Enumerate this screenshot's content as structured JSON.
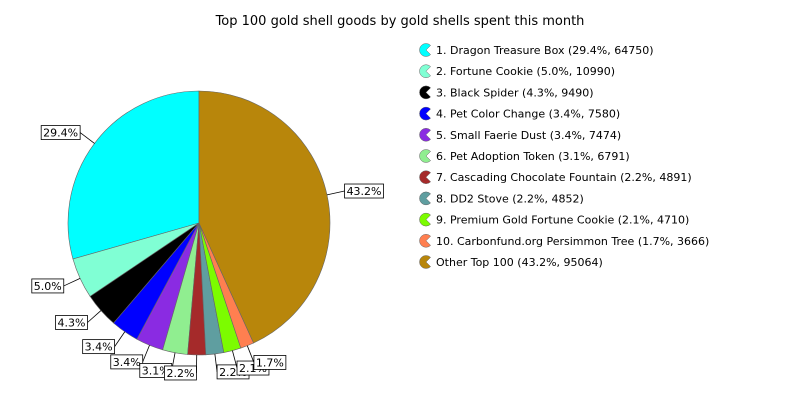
{
  "chart_data": {
    "type": "pie",
    "title": "Top 100 gold shell goods by gold shells spent this month",
    "slices": [
      {
        "legend": "1. Dragon Treasure Box (29.4%, 64750)",
        "name": "Dragon Treasure Box",
        "value": 64750,
        "percent_label": "29.4%",
        "color": "#00ffff"
      },
      {
        "legend": "2. Fortune Cookie (5.0%, 10990)",
        "name": "Fortune Cookie",
        "value": 10990,
        "percent_label": "5.0%",
        "color": "#80ffd4"
      },
      {
        "legend": "3. Black Spider (4.3%, 9490)",
        "name": "Black Spider",
        "value": 9490,
        "percent_label": "4.3%",
        "color": "#000000"
      },
      {
        "legend": "4. Pet Color Change (3.4%, 7580)",
        "name": "Pet Color Change",
        "value": 7580,
        "percent_label": "3.4%",
        "color": "#0000ff"
      },
      {
        "legend": "5. Small Faerie Dust (3.4%, 7474)",
        "name": "Small Faerie Dust",
        "value": 7474,
        "percent_label": "3.4%",
        "color": "#8a2be2"
      },
      {
        "legend": "6. Pet Adoption Token (3.1%, 6791)",
        "name": "Pet Adoption Token",
        "value": 6791,
        "percent_label": "3.1%",
        "color": "#90ee90"
      },
      {
        "legend": "7. Cascading Chocolate Fountain (2.2%, 4891)",
        "name": "Cascading Chocolate Fountain",
        "value": 4891,
        "percent_label": "2.2%",
        "color": "#a52a2a"
      },
      {
        "legend": "8. DD2 Stove (2.2%, 4852)",
        "name": "DD2 Stove",
        "value": 4852,
        "percent_label": "2.2%",
        "color": "#5f9ea0"
      },
      {
        "legend": "9. Premium Gold Fortune Cookie (2.1%, 4710)",
        "name": "Premium Gold Fortune Cookie",
        "value": 4710,
        "percent_label": "2.1%",
        "color": "#7cfc00"
      },
      {
        "legend": "10. Carbonfund.org Persimmon Tree (1.7%, 3666)",
        "name": "Carbonfund.org Persimmon Tree",
        "value": 3666,
        "percent_label": "1.7%",
        "color": "#ff7f50"
      },
      {
        "legend": "Other Top 100 (43.2%, 95064)",
        "name": "Other Top 100",
        "value": 95064,
        "percent_label": "43.2%",
        "color": "#b8860b"
      }
    ]
  }
}
